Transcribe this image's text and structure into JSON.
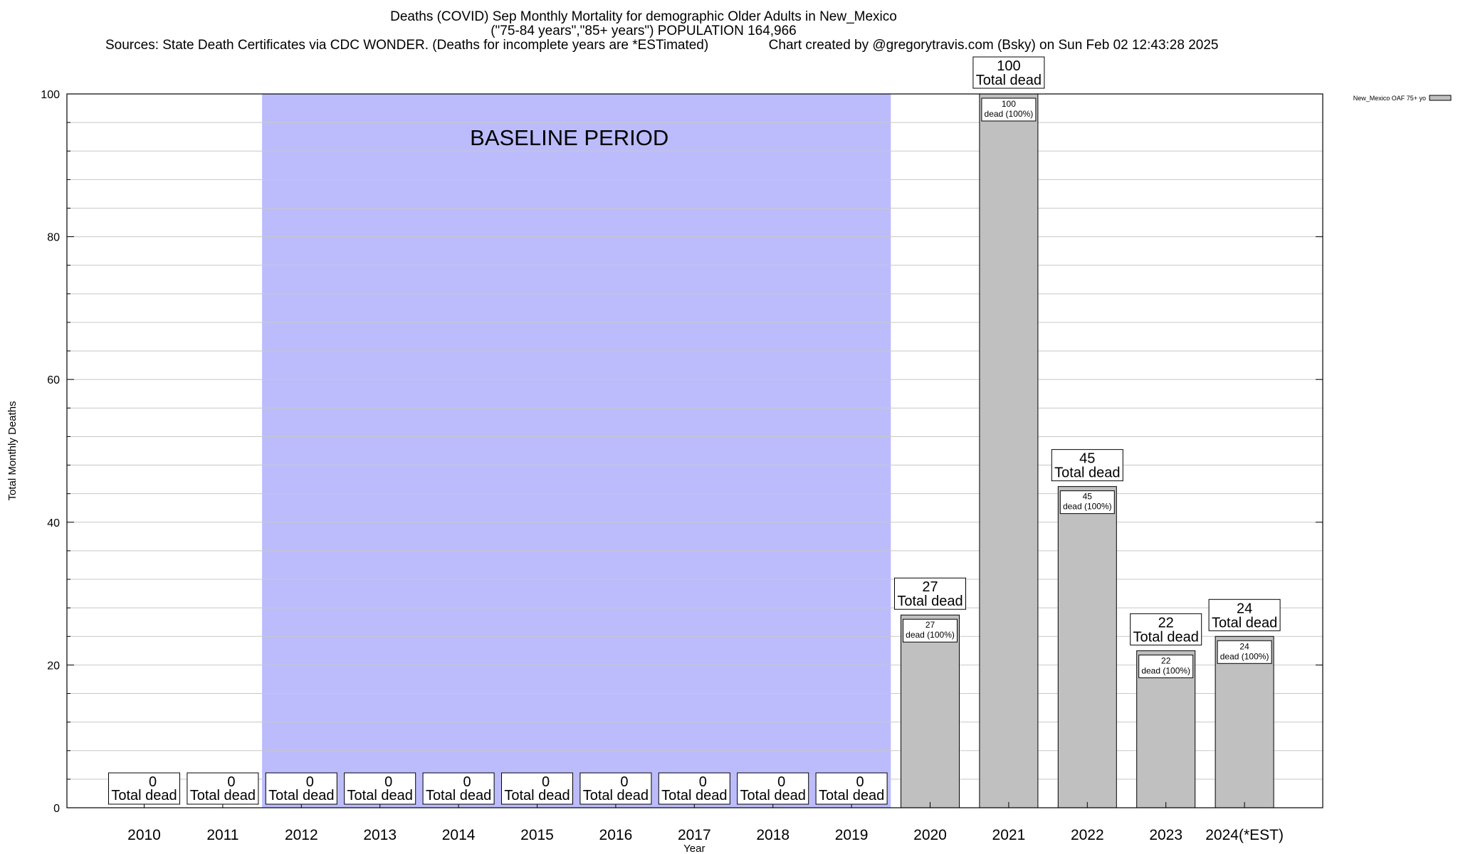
{
  "chart_data": {
    "type": "bar",
    "title_lines": [
      "Deaths (COVID) Sep Monthly Mortality for demographic Older Adults in New_Mexico",
      "(\"75-84 years\",\"85+ years\") POPULATION 164,966",
      "Sources: State Death Certificates via CDC WONDER. (Deaths for incomplete years are *ESTimated)                Chart created by @gregorytravis.com (Bsky) on Sun Feb 02 12:43:28 2025"
    ],
    "xlabel": "Year",
    "ylabel": "Total Monthly Deaths",
    "ylim": [
      0,
      100
    ],
    "yticks": [
      0,
      20,
      40,
      60,
      80,
      100
    ],
    "categories": [
      "2010",
      "2011",
      "2012",
      "2013",
      "2014",
      "2015",
      "2016",
      "2017",
      "2018",
      "2019",
      "2020",
      "2021",
      "2022",
      "2023",
      "2024(*EST)"
    ],
    "series": [
      {
        "name": "New_Mexico OAF 75+ yo",
        "values": [
          0,
          0,
          0,
          0,
          0,
          0,
          0,
          0,
          0,
          0,
          27,
          100,
          45,
          22,
          24
        ]
      }
    ],
    "total_label_suffix": "Total dead",
    "inner_label_suffix": "dead (100%)",
    "baseline": {
      "label": "BASELINE PERIOD",
      "from": "2012",
      "to": "2019"
    },
    "grid": true,
    "legend_placement": "top-right",
    "colors": {
      "bar": "#c0c0c0",
      "baseline": "#bcbcfc",
      "grid": "#c8c8c8"
    }
  }
}
